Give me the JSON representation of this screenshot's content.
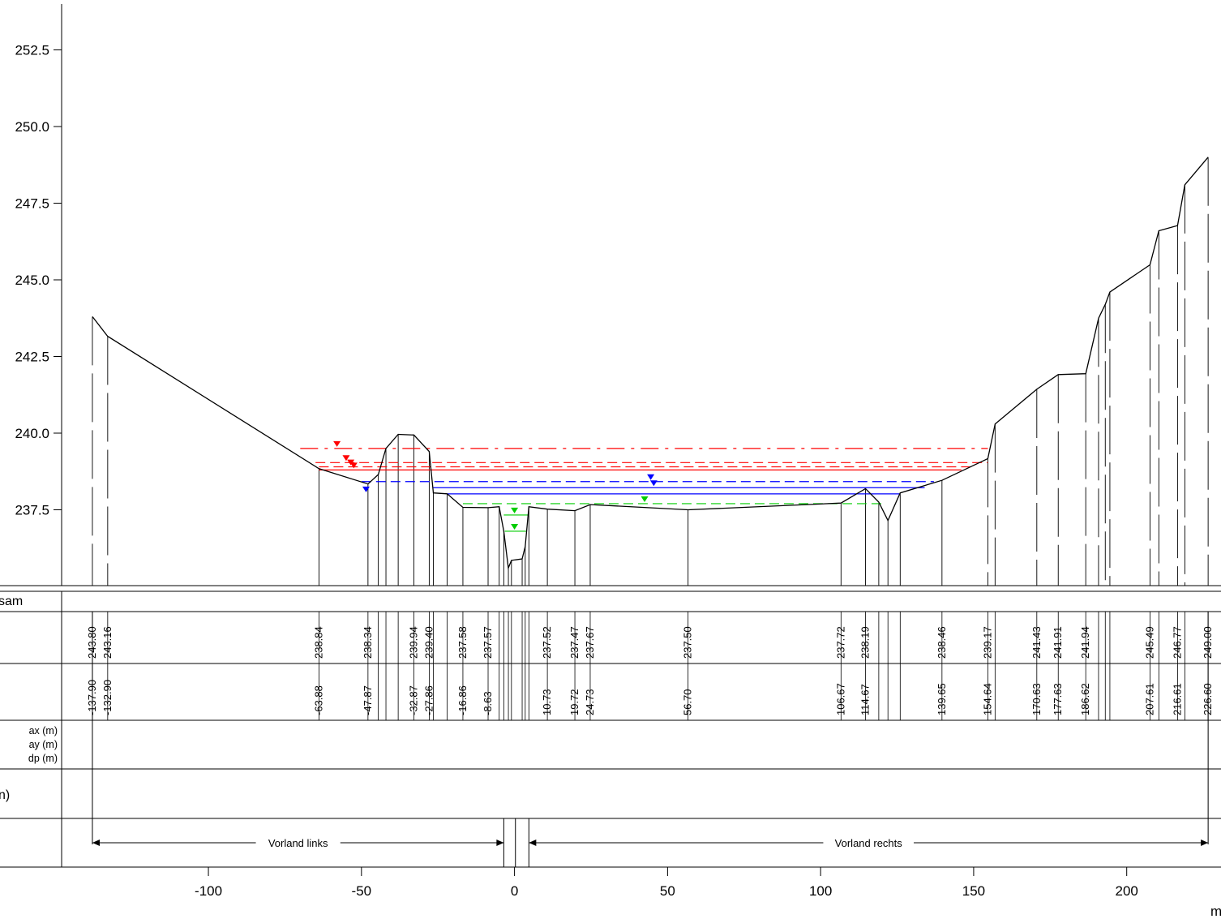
{
  "profile": {
    "y_axis": {
      "ticks": [
        "252.5",
        "250.0",
        "247.5",
        "245.0",
        "242.5",
        "240.0",
        "237.5"
      ],
      "tick_values": [
        252.5,
        250.0,
        247.5,
        245.0,
        242.5,
        240.0,
        237.5
      ]
    },
    "x_axis": {
      "ticks": [
        "-100",
        "-50",
        "0",
        "50",
        "100",
        "150",
        "200"
      ],
      "tick_values": [
        -100,
        -50,
        0,
        50,
        100,
        150,
        200
      ],
      "unit": "m"
    },
    "ground_points": [
      [
        -137.9,
        243.8
      ],
      [
        -132.9,
        243.16
      ],
      [
        -63.88,
        238.84
      ],
      [
        -47.87,
        238.34
      ],
      [
        -44.5,
        238.65
      ],
      [
        -42.0,
        239.5
      ],
      [
        -38.0,
        239.96
      ],
      [
        -32.87,
        239.94
      ],
      [
        -27.86,
        239.4
      ],
      [
        -26.5,
        238.05
      ],
      [
        -22.0,
        238.02
      ],
      [
        -16.86,
        237.58
      ],
      [
        -8.63,
        237.57
      ],
      [
        -5.0,
        237.6
      ],
      [
        -3.5,
        236.8
      ],
      [
        -2.0,
        235.6
      ],
      [
        -1.0,
        235.85
      ],
      [
        2.5,
        235.9
      ],
      [
        3.5,
        236.3
      ],
      [
        4.7,
        237.6
      ],
      [
        10.73,
        237.52
      ],
      [
        19.72,
        237.47
      ],
      [
        24.73,
        237.67
      ],
      [
        56.7,
        237.5
      ],
      [
        106.67,
        237.72
      ],
      [
        114.67,
        238.19
      ],
      [
        119.0,
        237.75
      ],
      [
        122.0,
        237.15
      ],
      [
        126.0,
        238.05
      ],
      [
        139.65,
        238.46
      ],
      [
        154.64,
        239.17
      ],
      [
        157.0,
        240.3
      ],
      [
        170.63,
        241.43
      ],
      [
        177.63,
        241.91
      ],
      [
        186.62,
        241.94
      ],
      [
        190.8,
        243.75
      ],
      [
        193.0,
        244.2
      ],
      [
        194.5,
        244.6
      ],
      [
        207.61,
        245.49
      ],
      [
        210.5,
        246.6
      ],
      [
        216.61,
        246.77
      ],
      [
        219.0,
        248.1
      ],
      [
        226.6,
        249.0
      ]
    ],
    "water_levels": [
      {
        "color": "#ff0000",
        "style": "dashdot",
        "elevation": 239.5,
        "x_from": -70.0,
        "x_to": 154.64,
        "marker_x": -58.0
      },
      {
        "color": "#ff0000",
        "style": "dashed",
        "elevation": 239.04,
        "x_from": -65.0,
        "x_to": 154.64,
        "marker_x": -55.0
      },
      {
        "color": "#ff0000",
        "style": "dashed",
        "elevation": 238.9,
        "x_from": -63.88,
        "x_to": 150.0,
        "marker_x": -53.5
      },
      {
        "color": "#ff0000",
        "style": "solid",
        "elevation": 238.8,
        "x_from": -63.88,
        "x_to": 146.0,
        "marker_x": -52.5
      },
      {
        "color": "#0000ff",
        "style": "dashed",
        "elevation": 238.42,
        "x_from": -50.0,
        "x_to": 137.0,
        "marker_x": 44.5
      },
      {
        "color": "#0000ff",
        "style": "solid",
        "elevation": 238.22,
        "x_from": -26.5,
        "x_to": 134.0,
        "marker_x": 45.5
      },
      {
        "color": "#0000ff",
        "style": "solid",
        "elevation": 238.02,
        "x_from": -22.0,
        "x_to": 126.0,
        "marker_x": -48.5
      },
      {
        "color": "#00cc00",
        "style": "dashed",
        "elevation": 237.7,
        "x_from": -16.86,
        "x_to": 120.0,
        "marker_x": 42.5
      },
      {
        "color": "#00cc00",
        "style": "solid",
        "elevation": 237.33,
        "x_from": -3.5,
        "x_to": 4.7,
        "marker_x": 0.0
      },
      {
        "color": "#00cc00",
        "style": "solid",
        "elevation": 236.8,
        "x_from": -3.2,
        "x_to": 3.8,
        "marker_x": 0.0
      }
    ]
  },
  "table": {
    "rows": [
      {
        "label": "sam"
      },
      {
        "label": ""
      },
      {
        "label": ""
      },
      {
        "label_lines": [
          "ax (m)",
          "ay (m)",
          "dp (m)"
        ]
      },
      {
        "label": "n)"
      },
      {
        "label": ""
      }
    ],
    "elevation_labels": [
      {
        "x": -137.9,
        "text": "243.80"
      },
      {
        "x": -132.9,
        "text": "243.16"
      },
      {
        "x": -63.88,
        "text": "238.84"
      },
      {
        "x": -47.87,
        "text": "238.34"
      },
      {
        "x": -32.87,
        "text": "239.94"
      },
      {
        "x": -27.86,
        "text": "239.40"
      },
      {
        "x": -16.86,
        "text": "237.58"
      },
      {
        "x": -8.63,
        "text": "237.57"
      },
      {
        "x": 10.73,
        "text": "237.52"
      },
      {
        "x": 19.72,
        "text": "237.47"
      },
      {
        "x": 24.73,
        "text": "237.67"
      },
      {
        "x": 56.7,
        "text": "237.50"
      },
      {
        "x": 106.67,
        "text": "237.72"
      },
      {
        "x": 114.67,
        "text": "238.19"
      },
      {
        "x": 139.65,
        "text": "238.46"
      },
      {
        "x": 154.64,
        "text": "239.17"
      },
      {
        "x": 170.63,
        "text": "241.43"
      },
      {
        "x": 177.63,
        "text": "241.91"
      },
      {
        "x": 186.62,
        "text": "241.94"
      },
      {
        "x": 207.61,
        "text": "245.49"
      },
      {
        "x": 216.61,
        "text": "246.77"
      },
      {
        "x": 226.6,
        "text": "249.00"
      }
    ],
    "station_labels": [
      {
        "x": -137.9,
        "text": "-137.90"
      },
      {
        "x": -132.9,
        "text": "-132.90"
      },
      {
        "x": -63.88,
        "text": "-63.88"
      },
      {
        "x": -47.87,
        "text": "-47.87"
      },
      {
        "x": -32.87,
        "text": "-32.87"
      },
      {
        "x": -27.86,
        "text": "-27.86"
      },
      {
        "x": -16.86,
        "text": "-16.86"
      },
      {
        "x": -8.63,
        "text": "-8.63"
      },
      {
        "x": 10.73,
        "text": "10.73"
      },
      {
        "x": 19.72,
        "text": "19.72"
      },
      {
        "x": 24.73,
        "text": "24.73"
      },
      {
        "x": 56.7,
        "text": "56.70"
      },
      {
        "x": 106.67,
        "text": "106.67"
      },
      {
        "x": 114.67,
        "text": "114.67"
      },
      {
        "x": 139.65,
        "text": "139.65"
      },
      {
        "x": 154.64,
        "text": "154.64"
      },
      {
        "x": 170.63,
        "text": "170.63"
      },
      {
        "x": 177.63,
        "text": "177.63"
      },
      {
        "x": 186.62,
        "text": "186.62"
      },
      {
        "x": 207.61,
        "text": "207.61"
      },
      {
        "x": 216.61,
        "text": "216.61"
      },
      {
        "x": 226.6,
        "text": "226.60"
      }
    ],
    "zones": [
      {
        "label": "Vorland links",
        "x_from": -137.9,
        "x_to": -3.5
      },
      {
        "label": "Vorland rechts",
        "x_from": 4.7,
        "x_to": 226.6
      }
    ],
    "zone_gap_marks": [
      -3.5,
      0.3,
      4.7
    ]
  }
}
